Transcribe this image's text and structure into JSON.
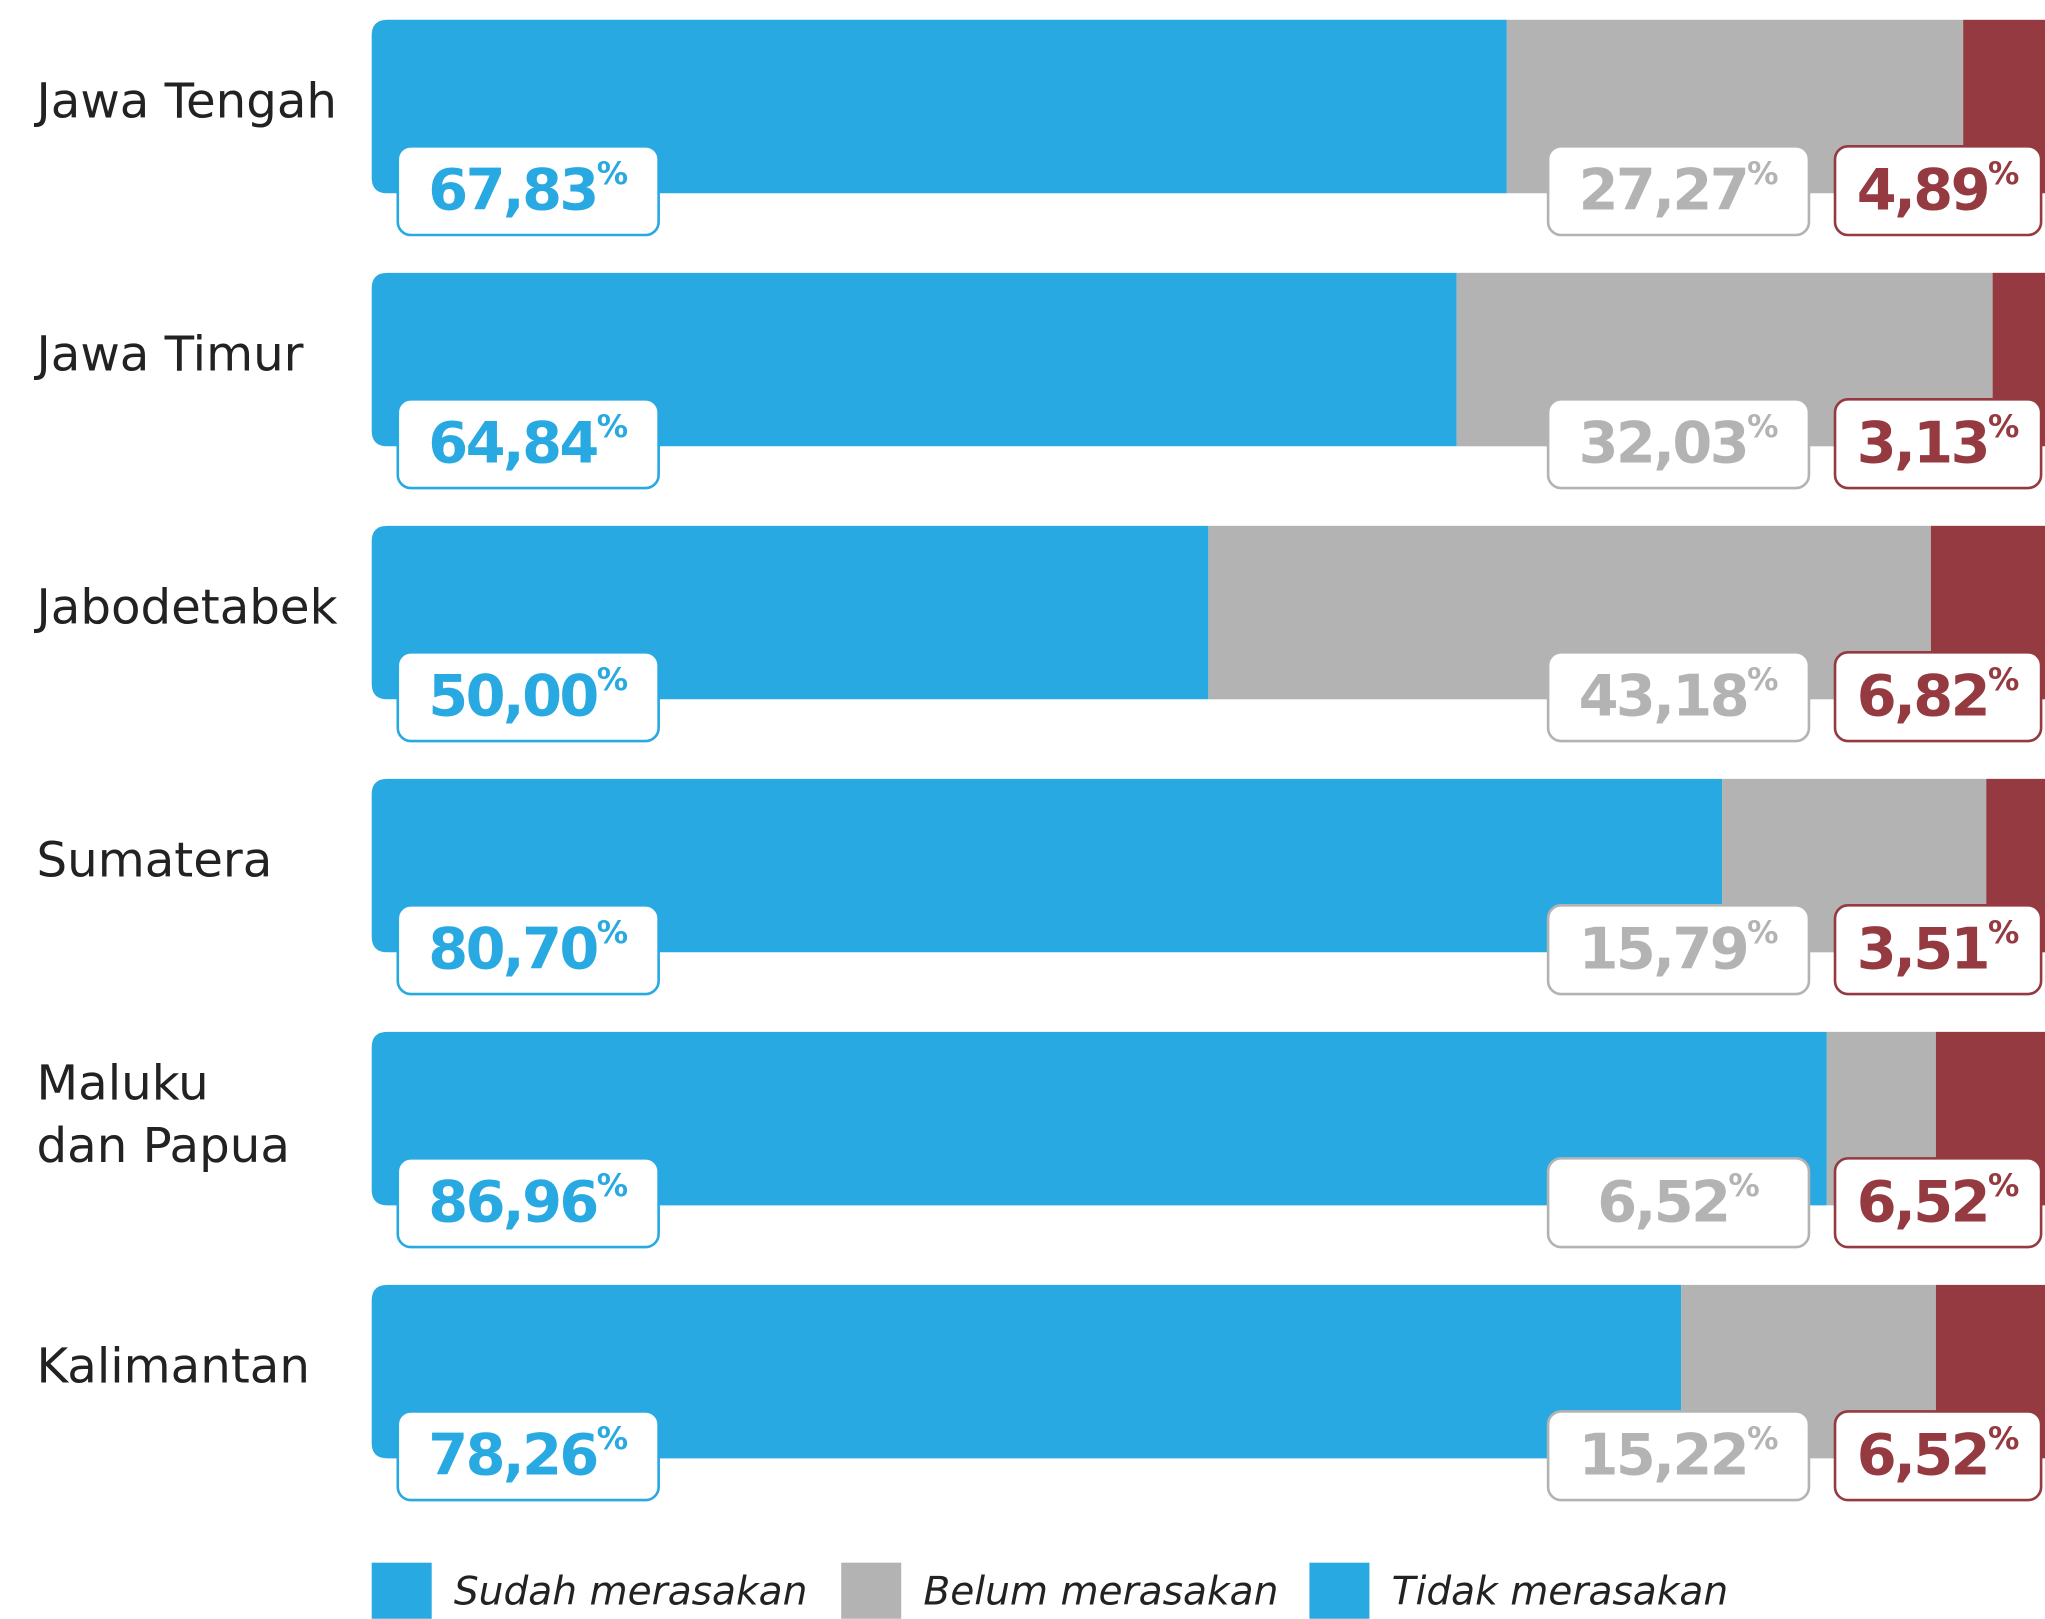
{
  "chart_data": {
    "type": "stacked_bar_horizontal",
    "categories": [
      "Jawa Tengah",
      "Jawa Timur",
      "Jabodetabek",
      "Sumatera",
      "Maluku\ndan Papua",
      "Kalimantan"
    ],
    "series": [
      {
        "name": "Sudah merasakan",
        "color": "#29a9e1",
        "values": [
          67.83,
          64.84,
          50.0,
          80.7,
          86.96,
          78.26
        ],
        "value_labels": [
          "67,83%",
          "64,84%",
          "50,00%",
          "80,70%",
          "86,96%",
          "78,26%"
        ]
      },
      {
        "name": "Belum merasakan",
        "color": "#b3b3b3",
        "values": [
          27.27,
          32.03,
          43.18,
          15.79,
          6.52,
          15.22
        ],
        "value_labels": [
          "27,27%",
          "32,03%",
          "43,18%",
          "15,79%",
          "6,52%",
          "15,22%"
        ]
      },
      {
        "name": "Tidak merasakan",
        "color": "#943a40",
        "values": [
          4.89,
          3.13,
          6.82,
          3.51,
          6.52,
          6.52
        ],
        "value_labels": [
          "4,89%",
          "3,13%",
          "6,82%",
          "3,51%",
          "6,52%",
          "6,52%"
        ]
      }
    ],
    "legend_colors": [
      "#29a9e1",
      "#b3b3b3",
      "#29a9e1"
    ]
  }
}
